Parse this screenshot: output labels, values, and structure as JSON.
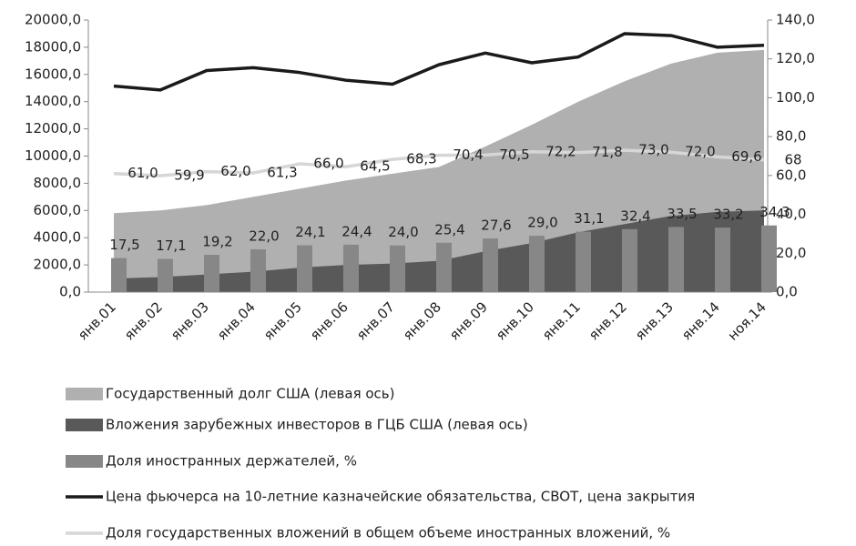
{
  "chart_data": {
    "type": "combo",
    "categories": [
      "янв.01",
      "янв.02",
      "янв.03",
      "янв.04",
      "янв.05",
      "янв.06",
      "янв.07",
      "янв.08",
      "янв.09",
      "янв.10",
      "янв.11",
      "янв.12",
      "янв.13",
      "янв.14",
      "ноя.14"
    ],
    "ylim": [
      0,
      20000
    ],
    "yticks": [
      {
        "value": 0,
        "label": "0,0"
      },
      {
        "value": 2000,
        "label": "2000,0"
      },
      {
        "value": 4000,
        "label": "4000,0"
      },
      {
        "value": 6000,
        "label": "6000,0"
      },
      {
        "value": 8000,
        "label": "8000,0"
      },
      {
        "value": 10000,
        "label": "10000,0"
      },
      {
        "value": 12000,
        "label": "12000,0"
      },
      {
        "value": 14000,
        "label": "14000,0"
      },
      {
        "value": 16000,
        "label": "16000,0"
      },
      {
        "value": 18000,
        "label": "18000,0"
      },
      {
        "value": 20000,
        "label": "20000,0"
      }
    ],
    "y2lim": [
      0,
      140
    ],
    "y2ticks": [
      {
        "value": 0,
        "label": "0,0"
      },
      {
        "value": 20,
        "label": "20,0"
      },
      {
        "value": 40,
        "label": "40,0"
      },
      {
        "value": 60,
        "label": "60,0"
      },
      {
        "value": 80,
        "label": "80,0"
      },
      {
        "value": 100,
        "label": "100,0"
      },
      {
        "value": 120,
        "label": "120,0"
      },
      {
        "value": 140,
        "label": "140,0"
      }
    ],
    "grid": false,
    "legend": "bottom",
    "series": [
      {
        "name": "Государственный долг США (левая ось)",
        "kind": "area",
        "color": "#b0b0b0",
        "values": [
          5800,
          6000,
          6400,
          7000,
          7600,
          8200,
          8700,
          9200,
          10700,
          12300,
          14000,
          15500,
          16800,
          17600,
          17800
        ]
      },
      {
        "name": "Вложения зарубежных инвесторов в ГЦБ США (левая ось)",
        "kind": "area",
        "color": "#595959",
        "values": [
          1000,
          1100,
          1300,
          1500,
          1800,
          2000,
          2100,
          2300,
          3000,
          3600,
          4400,
          5000,
          5600,
          5900,
          6000
        ]
      },
      {
        "name": "Доля иностранных держателей, %",
        "kind": "bar",
        "color": "#878787",
        "axis": "y2",
        "values": [
          17.5,
          17.1,
          19.2,
          22.0,
          24.1,
          24.4,
          24.0,
          25.4,
          27.6,
          29.0,
          31.1,
          32.4,
          33.5,
          33.2,
          34.3
        ],
        "value_labels": [
          "17,5",
          "17,1",
          "19,2",
          "22,0",
          "24,1",
          "24,4",
          "24,0",
          "25,4",
          "27,6",
          "29,0",
          "31,1",
          "32,4",
          "33,5",
          "33,2",
          "34,3"
        ]
      },
      {
        "name": "Цена фьючерса на 10-летние казначейские обязательства, CBOT, цена закрытия",
        "kind": "line",
        "color": "#1a1a1a",
        "axis": "y2",
        "values": [
          106,
          104,
          114,
          115.5,
          113,
          109,
          107,
          117,
          123,
          118,
          121,
          133,
          132,
          126,
          127
        ]
      },
      {
        "name": "Доля государственных вложений в  общем объеме иностранных вложений, %",
        "kind": "line",
        "color": "#d6d6d6",
        "axis": "y2",
        "values": [
          61.0,
          59.9,
          62.0,
          61.3,
          66.0,
          64.5,
          68.3,
          70.4,
          70.5,
          72.2,
          71.8,
          73.0,
          72.0,
          69.6,
          68
        ],
        "value_labels": [
          "61,0",
          "59,9",
          "62,0",
          "61,3",
          "66,0",
          "64,5",
          "68,3",
          "70,4",
          "70,5",
          "72,2",
          "71,8",
          "73,0",
          "72,0",
          "69,6",
          "68"
        ]
      }
    ]
  }
}
